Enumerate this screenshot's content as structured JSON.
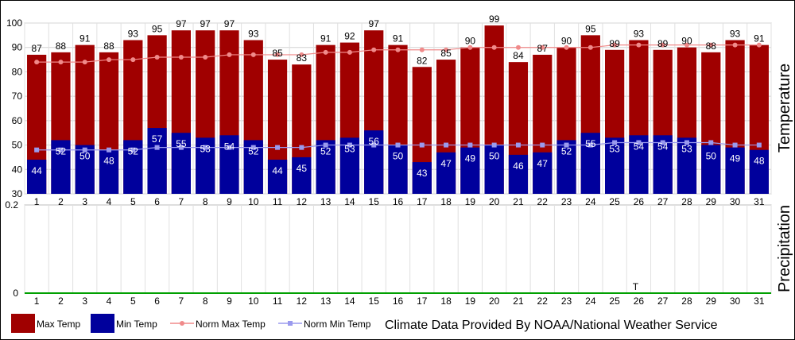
{
  "chart_data": {
    "type": "bar",
    "days": [
      "1",
      "2",
      "3",
      "4",
      "5",
      "6",
      "7",
      "8",
      "9",
      "10",
      "11",
      "12",
      "13",
      "14",
      "15",
      "16",
      "17",
      "18",
      "19",
      "20",
      "21",
      "22",
      "23",
      "24",
      "25",
      "26",
      "27",
      "28",
      "29",
      "30",
      "31"
    ],
    "temperature": {
      "axis_title": "Temperature",
      "ylim": [
        30,
        100
      ],
      "yticks": [
        "30",
        "40",
        "50",
        "60",
        "70",
        "80",
        "90",
        "100"
      ],
      "series": [
        {
          "name": "Max Temp",
          "type": "bar",
          "color": "#a00000",
          "values": [
            87,
            88,
            91,
            88,
            93,
            95,
            97,
            97,
            97,
            93,
            85,
            83,
            91,
            92,
            97,
            91,
            82,
            85,
            90,
            99,
            84,
            87,
            90,
            95,
            89,
            93,
            89,
            90,
            88,
            93,
            91
          ]
        },
        {
          "name": "Min Temp",
          "type": "bar",
          "color": "#00009c",
          "values": [
            44,
            52,
            50,
            48,
            52,
            57,
            55,
            53,
            54,
            52,
            44,
            45,
            52,
            53,
            56,
            50,
            43,
            47,
            49,
            50,
            46,
            47,
            52,
            55,
            53,
            54,
            54,
            53,
            50,
            49,
            48
          ]
        },
        {
          "name": "Norm Max Temp",
          "type": "line",
          "color": "#f08a8a",
          "values": [
            84,
            84,
            84,
            85,
            85,
            86,
            86,
            86,
            87,
            87,
            87,
            87,
            88,
            88,
            89,
            89,
            89,
            89,
            90,
            90,
            90,
            90,
            90,
            90,
            91,
            91,
            91,
            91,
            91,
            91,
            91
          ]
        },
        {
          "name": "Norm Min Temp",
          "type": "line",
          "color": "#9a9aee",
          "values": [
            48,
            48,
            48,
            48,
            48,
            49,
            49,
            49,
            49,
            49,
            49,
            49,
            50,
            50,
            50,
            50,
            50,
            50,
            50,
            50,
            50,
            50,
            50,
            50,
            51,
            51,
            51,
            51,
            51,
            50,
            50
          ]
        }
      ]
    },
    "precipitation": {
      "axis_title": "Precipitation",
      "ylim": [
        0,
        0.2
      ],
      "yticks": [
        "0",
        "0.2"
      ],
      "trace_marks": [
        {
          "day": "26",
          "label": "T"
        }
      ],
      "baseline_color": "#00a000"
    },
    "legend": [
      {
        "name": "Max Temp",
        "style": "box",
        "color": "#a00000"
      },
      {
        "name": "Min Temp",
        "style": "box",
        "color": "#00009c"
      },
      {
        "name": "Norm Max Temp",
        "style": "line",
        "color": "#f08a8a"
      },
      {
        "name": "Norm Min Temp",
        "style": "line",
        "color": "#9a9aee"
      }
    ],
    "credit": "Climate Data Provided By NOAA/National Weather Service",
    "grid": true
  }
}
